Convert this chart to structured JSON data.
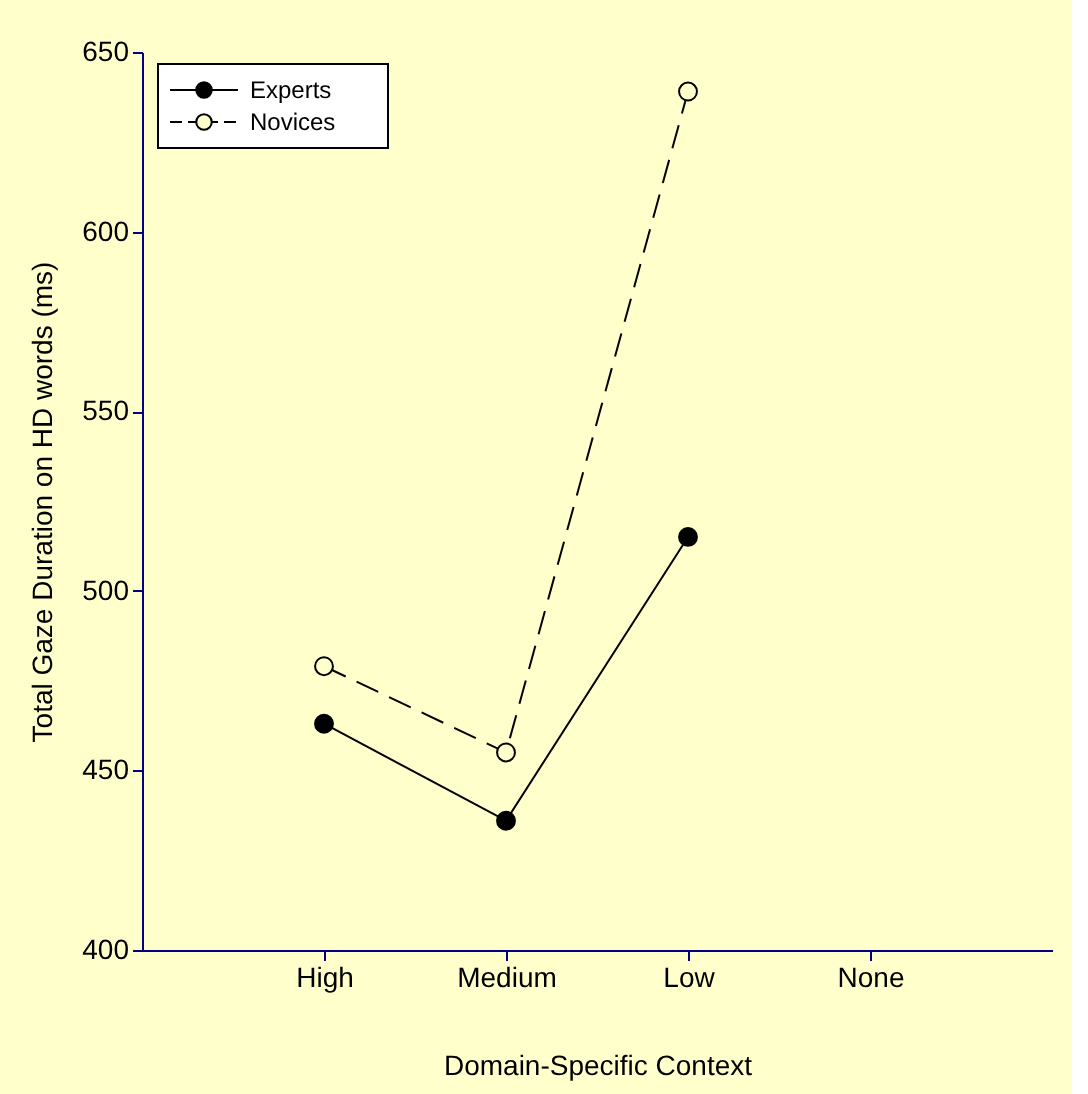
{
  "chart_data": {
    "type": "line",
    "xlabel": "Domain-Specific Context",
    "ylabel": "Total Gaze Duration on HD words (ms)",
    "categories": [
      "High",
      "Medium",
      "Low",
      "None"
    ],
    "series": [
      {
        "name": "Experts",
        "color": "#000000",
        "values": [
          463,
          436,
          515,
          null
        ],
        "line_style": "solid"
      },
      {
        "name": "Novices",
        "color": "#000000",
        "values": [
          479,
          455,
          639,
          null
        ],
        "line_style": "dashed"
      }
    ],
    "ylim": [
      400,
      650
    ],
    "yticks": [
      400,
      450,
      500,
      550,
      600,
      650
    ],
    "grid": false,
    "legend": "top left",
    "marker": "circle"
  }
}
